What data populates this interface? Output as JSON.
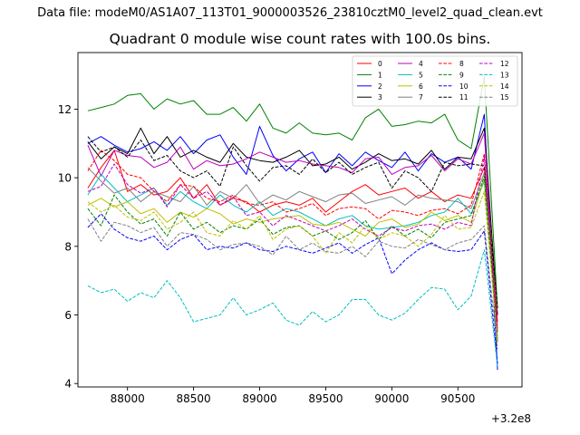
{
  "suptitle": "Data file: modeM0/AS1A07_113T01_9000003526_23810cztM0_level2_quad_clean.evt",
  "chart_data": {
    "type": "line",
    "title": "Quadrant 0 module wise count rates with 100.0s bins.",
    "xlabel": "",
    "ylabel": "",
    "x_offset_label": "+3.2e8",
    "xlim": [
      87625,
      90985
    ],
    "ylim": [
      3.9,
      13.65
    ],
    "xticks": [
      88000,
      88500,
      89000,
      89500,
      90000,
      90500
    ],
    "xtick_labels": [
      "88000",
      "88500",
      "89000",
      "89500",
      "90000",
      "90500"
    ],
    "yticks": [
      4,
      6,
      8,
      10,
      12
    ],
    "ytick_labels": [
      "4",
      "6",
      "8",
      "10",
      "12"
    ],
    "legend_position": "upper-right",
    "x": [
      87700,
      87800,
      87900,
      88000,
      88100,
      88200,
      88300,
      88400,
      88500,
      88600,
      88700,
      88800,
      88900,
      89000,
      89100,
      89200,
      89300,
      89400,
      89500,
      89600,
      89700,
      89800,
      89900,
      90000,
      90100,
      90200,
      90300,
      90400,
      90500,
      90600,
      90700,
      90800
    ],
    "series": [
      {
        "name": "0",
        "color": "#ff0000",
        "dash": "solid",
        "values": [
          9.7,
          10.3,
          10.8,
          9.6,
          9.8,
          9.5,
          9.6,
          10.0,
          9.4,
          9.8,
          9.2,
          9.4,
          9.3,
          9.0,
          9.2,
          9.3,
          9.2,
          9.4,
          9.0,
          9.3,
          9.6,
          9.8,
          9.5,
          9.6,
          9.7,
          9.4,
          9.6,
          9.3,
          9.5,
          9.4,
          10.3,
          5.8
        ]
      },
      {
        "name": "1",
        "color": "#008000",
        "dash": "solid",
        "values": [
          11.95,
          12.05,
          12.15,
          12.4,
          12.45,
          12.0,
          12.3,
          12.15,
          12.25,
          11.85,
          11.85,
          12.05,
          11.65,
          12.15,
          11.45,
          11.3,
          11.6,
          11.3,
          11.25,
          11.3,
          11.1,
          11.75,
          12.0,
          11.5,
          11.55,
          11.65,
          11.6,
          11.85,
          11.1,
          10.85,
          12.95,
          6.2
        ]
      },
      {
        "name": "2",
        "color": "#0000ff",
        "dash": "solid",
        "values": [
          11.0,
          11.2,
          10.95,
          10.75,
          10.85,
          11.05,
          10.8,
          11.2,
          10.7,
          11.1,
          11.25,
          10.6,
          10.1,
          11.5,
          10.65,
          10.2,
          10.55,
          10.75,
          10.15,
          10.7,
          10.35,
          10.75,
          10.5,
          10.3,
          10.75,
          10.2,
          10.7,
          10.45,
          10.6,
          10.25,
          11.85,
          4.4
        ]
      },
      {
        "name": "3",
        "color": "#000000",
        "dash": "solid",
        "values": [
          11.05,
          10.55,
          10.9,
          10.7,
          11.45,
          10.7,
          11.2,
          10.6,
          10.8,
          10.6,
          10.45,
          11.0,
          10.6,
          10.5,
          10.45,
          10.6,
          10.8,
          10.35,
          10.4,
          10.6,
          10.25,
          10.45,
          10.7,
          10.5,
          10.55,
          10.4,
          10.8,
          10.25,
          10.6,
          10.55,
          11.45,
          6.0
        ]
      },
      {
        "name": "4",
        "color": "#bf00bf",
        "dash": "solid",
        "values": [
          10.95,
          10.05,
          10.8,
          10.65,
          10.6,
          10.3,
          10.45,
          10.9,
          10.25,
          10.5,
          10.35,
          10.4,
          10.55,
          10.75,
          10.6,
          10.45,
          10.5,
          10.4,
          10.35,
          10.3,
          10.15,
          10.55,
          10.6,
          10.1,
          10.3,
          10.35,
          10.65,
          10.2,
          10.55,
          10.4,
          11.3,
          5.2
        ]
      },
      {
        "name": "5",
        "color": "#00bfbf",
        "dash": "solid",
        "values": [
          9.5,
          10.1,
          9.7,
          9.3,
          9.5,
          9.7,
          9.2,
          9.6,
          9.3,
          9.1,
          9.5,
          9.2,
          9.0,
          9.3,
          8.9,
          9.1,
          9.0,
          8.8,
          8.6,
          8.8,
          8.9,
          8.6,
          8.5,
          8.55,
          8.6,
          8.7,
          8.9,
          9.0,
          9.4,
          8.95,
          9.9,
          5.3
        ]
      },
      {
        "name": "6",
        "color": "#bfbf00",
        "dash": "solid",
        "values": [
          9.2,
          9.4,
          9.15,
          9.3,
          8.95,
          9.1,
          8.7,
          9.0,
          8.85,
          9.1,
          8.95,
          8.65,
          8.8,
          8.7,
          8.8,
          8.85,
          8.9,
          8.65,
          8.6,
          8.7,
          8.5,
          8.3,
          8.7,
          8.8,
          8.55,
          8.65,
          9.0,
          8.75,
          8.9,
          8.7,
          10.0,
          5.25
        ]
      },
      {
        "name": "7",
        "color": "#808080",
        "dash": "solid",
        "values": [
          10.3,
          9.9,
          9.55,
          9.7,
          9.3,
          9.6,
          9.45,
          9.3,
          9.75,
          9.2,
          9.6,
          9.4,
          9.8,
          9.25,
          9.5,
          9.35,
          9.6,
          9.45,
          9.3,
          9.5,
          9.55,
          9.25,
          9.35,
          9.45,
          9.2,
          9.5,
          9.4,
          9.35,
          9.3,
          9.1,
          10.15,
          6.1
        ]
      },
      {
        "name": "8",
        "color": "#ff0000",
        "dash": "dashed",
        "values": [
          10.2,
          10.8,
          10.5,
          10.1,
          10.0,
          9.6,
          9.3,
          9.8,
          9.75,
          9.4,
          9.3,
          9.5,
          9.25,
          9.2,
          9.3,
          9.0,
          9.1,
          9.25,
          8.9,
          9.1,
          9.15,
          9.1,
          8.8,
          9.05,
          9.0,
          8.9,
          9.05,
          9.1,
          8.95,
          9.2,
          10.7,
          5.6
        ]
      },
      {
        "name": "9",
        "color": "#008000",
        "dash": "dashed",
        "values": [
          9.1,
          8.6,
          9.5,
          9.0,
          8.65,
          8.8,
          8.3,
          9.0,
          8.5,
          8.7,
          8.4,
          8.6,
          8.5,
          8.8,
          8.35,
          8.55,
          8.6,
          8.3,
          8.45,
          8.2,
          8.4,
          8.75,
          8.2,
          8.6,
          8.3,
          8.5,
          8.25,
          8.7,
          8.8,
          8.9,
          10.05,
          5.3
        ]
      },
      {
        "name": "10",
        "color": "#0000ff",
        "dash": "dashed",
        "values": [
          8.55,
          8.95,
          8.5,
          8.25,
          8.15,
          8.3,
          7.9,
          8.2,
          8.35,
          7.9,
          8.0,
          7.95,
          8.1,
          7.9,
          7.85,
          8.0,
          7.9,
          7.8,
          7.95,
          8.1,
          7.8,
          8.05,
          8.25,
          7.2,
          7.6,
          7.9,
          8.1,
          7.9,
          7.85,
          7.9,
          8.45,
          4.6
        ]
      },
      {
        "name": "11",
        "color": "#000000",
        "dash": "dashed",
        "values": [
          11.2,
          10.75,
          10.9,
          10.6,
          11.1,
          10.5,
          10.65,
          10.2,
          10.0,
          10.2,
          9.75,
          10.9,
          10.35,
          9.9,
          10.3,
          10.35,
          10.1,
          10.55,
          10.15,
          10.45,
          10.1,
          10.3,
          10.45,
          9.7,
          10.2,
          10.0,
          9.6,
          10.45,
          10.35,
          10.4,
          10.35,
          6.2
        ]
      },
      {
        "name": "12",
        "color": "#bf00bf",
        "dash": "dashed",
        "values": [
          9.6,
          9.75,
          10.4,
          9.8,
          9.55,
          9.7,
          9.15,
          9.8,
          9.4,
          9.6,
          9.2,
          9.45,
          8.9,
          9.0,
          8.6,
          8.9,
          8.75,
          8.6,
          8.45,
          8.6,
          8.8,
          8.5,
          8.3,
          8.55,
          8.45,
          8.6,
          8.65,
          8.5,
          8.7,
          8.6,
          10.6,
          5.5
        ]
      },
      {
        "name": "13",
        "color": "#00bfbf",
        "dash": "dashed",
        "values": [
          6.85,
          6.65,
          6.75,
          6.4,
          6.65,
          6.5,
          7.0,
          6.5,
          5.8,
          5.9,
          6.0,
          6.5,
          6.0,
          6.15,
          6.35,
          5.85,
          5.7,
          6.1,
          5.8,
          6.0,
          6.45,
          6.45,
          6.0,
          5.85,
          6.05,
          6.45,
          6.8,
          6.75,
          6.15,
          6.55,
          7.9,
          4.5
        ]
      },
      {
        "name": "14",
        "color": "#bfbf00",
        "dash": "dashed",
        "values": [
          9.3,
          9.0,
          9.2,
          8.85,
          8.75,
          9.0,
          8.5,
          8.7,
          9.0,
          8.4,
          8.3,
          8.75,
          8.5,
          8.9,
          8.2,
          8.5,
          8.6,
          8.3,
          7.8,
          8.4,
          8.1,
          8.6,
          8.2,
          8.4,
          8.3,
          8.0,
          8.35,
          8.9,
          8.5,
          8.55,
          9.6,
          5.2
        ]
      },
      {
        "name": "15",
        "color": "#808080",
        "dash": "dashed",
        "values": [
          8.8,
          8.15,
          8.7,
          8.6,
          8.4,
          8.55,
          8.0,
          8.4,
          8.35,
          8.2,
          7.9,
          8.05,
          8.1,
          8.0,
          7.75,
          8.3,
          7.9,
          8.1,
          7.85,
          7.8,
          8.0,
          7.7,
          8.15,
          8.0,
          7.95,
          8.2,
          8.05,
          7.9,
          8.1,
          8.2,
          8.6,
          5.0
        ]
      }
    ]
  }
}
